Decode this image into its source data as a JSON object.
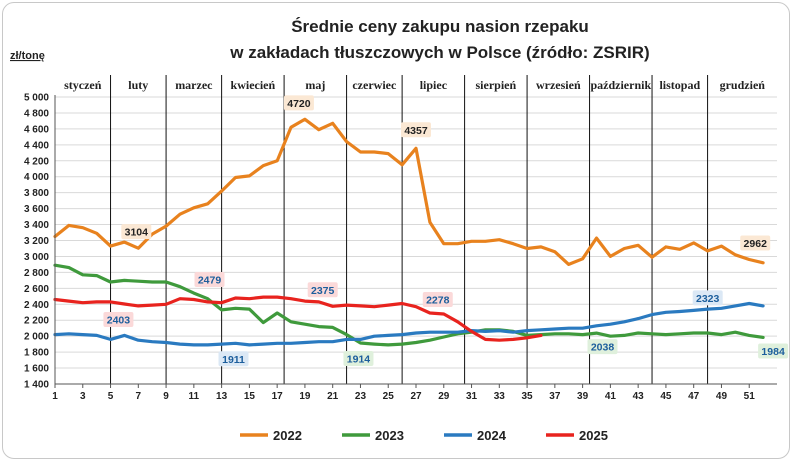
{
  "chart_data": {
    "type": "line",
    "title_line1": "Średnie ceny zakupu nasion rzepaku",
    "title_line2": "w zakładach tłuszczowych w Polsce  (źródło: ZSRIR)",
    "ylabel": "zł/tonę",
    "ylim": [
      1400,
      5000
    ],
    "yticks": [
      "1 400",
      "1 600",
      "1 800",
      "2 000",
      "2 200",
      "2 400",
      "2 600",
      "2 800",
      "3 000",
      "3 200",
      "3 400",
      "3 600",
      "3 800",
      "4 000",
      "4 200",
      "4 400",
      "4 600",
      "4 800",
      "5 000"
    ],
    "xlim": [
      1,
      53
    ],
    "xticks": [
      "1",
      "3",
      "5",
      "7",
      "9",
      "11",
      "13",
      "15",
      "17",
      "19",
      "21",
      "23",
      "25",
      "27",
      "29",
      "31",
      "33",
      "35",
      "37",
      "39",
      "41",
      "43",
      "45",
      "47",
      "49",
      "51"
    ],
    "months": [
      {
        "label": "styczeń",
        "start": 1,
        "end": 5
      },
      {
        "label": "luty",
        "start": 5,
        "end": 9
      },
      {
        "label": "marzec",
        "start": 9,
        "end": 13
      },
      {
        "label": "kwiecień",
        "start": 13,
        "end": 17.5
      },
      {
        "label": "maj",
        "start": 17.5,
        "end": 22
      },
      {
        "label": "czerwiec",
        "start": 22,
        "end": 26
      },
      {
        "label": "lipiec",
        "start": 26,
        "end": 30.5
      },
      {
        "label": "sierpień",
        "start": 30.5,
        "end": 35
      },
      {
        "label": "wrzesień",
        "start": 35,
        "end": 39.5
      },
      {
        "label": "październik",
        "start": 39.5,
        "end": 44
      },
      {
        "label": "listopad",
        "start": 44,
        "end": 48
      },
      {
        "label": "grudzień",
        "start": 48,
        "end": 53
      }
    ],
    "series": [
      {
        "name": "2022",
        "color": "#E8821E",
        "x": [
          1,
          2,
          3,
          4,
          5,
          6,
          7,
          8,
          9,
          10,
          11,
          12,
          13,
          14,
          15,
          16,
          17,
          18,
          19,
          20,
          21,
          22,
          23,
          24,
          25,
          26,
          27,
          28,
          29,
          30,
          31,
          32,
          33,
          34,
          35,
          36,
          37,
          38,
          39,
          40,
          41,
          42,
          43,
          44,
          45,
          46,
          47,
          48,
          49,
          50,
          51,
          52
        ],
        "values": [
          3250,
          3390,
          3360,
          3290,
          3130,
          3180,
          3104,
          3280,
          3380,
          3530,
          3610,
          3660,
          3820,
          3990,
          4010,
          4140,
          4200,
          4620,
          4720,
          4590,
          4670,
          4440,
          4310,
          4310,
          4290,
          4150,
          4357,
          3430,
          3160,
          3160,
          3190,
          3190,
          3210,
          3160,
          3100,
          3120,
          3060,
          2900,
          2970,
          3230,
          3000,
          3100,
          3140,
          2990,
          3120,
          3090,
          3170,
          3070,
          3130,
          3020,
          2962,
          2920
        ]
      },
      {
        "name": "2023",
        "color": "#3F9A3C",
        "x": [
          1,
          2,
          3,
          4,
          5,
          6,
          7,
          8,
          9,
          10,
          11,
          12,
          13,
          14,
          15,
          16,
          17,
          18,
          19,
          20,
          21,
          22,
          23,
          24,
          25,
          26,
          27,
          28,
          29,
          30,
          31,
          32,
          33,
          34,
          35,
          36,
          37,
          38,
          39,
          40,
          41,
          42,
          43,
          44,
          45,
          46,
          47,
          48,
          49,
          50,
          51,
          52
        ],
        "values": [
          2890,
          2860,
          2770,
          2760,
          2680,
          2700,
          2690,
          2680,
          2680,
          2620,
          2540,
          2470,
          2330,
          2350,
          2340,
          2170,
          2290,
          2180,
          2150,
          2120,
          2110,
          2020,
          1914,
          1900,
          1890,
          1900,
          1920,
          1950,
          1990,
          2030,
          2050,
          2080,
          2080,
          2060,
          2010,
          2020,
          2030,
          2030,
          2020,
          2038,
          2000,
          2010,
          2040,
          2030,
          2020,
          2030,
          2040,
          2040,
          2020,
          2050,
          2010,
          1984
        ]
      },
      {
        "name": "2024",
        "color": "#2A7AC0",
        "x": [
          1,
          2,
          3,
          4,
          5,
          6,
          7,
          8,
          9,
          10,
          11,
          12,
          13,
          14,
          15,
          16,
          17,
          18,
          19,
          20,
          21,
          22,
          23,
          24,
          25,
          26,
          27,
          28,
          29,
          30,
          31,
          32,
          33,
          34,
          35,
          36,
          37,
          38,
          39,
          40,
          41,
          42,
          43,
          44,
          45,
          46,
          47,
          48,
          49,
          50,
          51,
          52
        ],
        "values": [
          2020,
          2030,
          2020,
          2010,
          1960,
          2010,
          1950,
          1930,
          1920,
          1900,
          1890,
          1890,
          1900,
          1911,
          1890,
          1900,
          1910,
          1910,
          1920,
          1930,
          1930,
          1960,
          1960,
          2000,
          2010,
          2020,
          2040,
          2050,
          2050,
          2050,
          2070,
          2060,
          2070,
          2050,
          2070,
          2080,
          2090,
          2100,
          2100,
          2130,
          2150,
          2180,
          2220,
          2270,
          2300,
          2310,
          2323,
          2340,
          2350,
          2380,
          2410,
          2380
        ]
      },
      {
        "name": "2025",
        "color": "#E8231E",
        "x": [
          1,
          2,
          3,
          4,
          5,
          6,
          7,
          8,
          9,
          10,
          11,
          12,
          13,
          14,
          15,
          16,
          17,
          18,
          19,
          20,
          21,
          22,
          23,
          24,
          25,
          26,
          27,
          28,
          29,
          30,
          31,
          32,
          33,
          34,
          35,
          36
        ],
        "values": [
          2460,
          2440,
          2420,
          2430,
          2430,
          2403,
          2380,
          2390,
          2400,
          2470,
          2460,
          2430,
          2420,
          2479,
          2470,
          2490,
          2490,
          2470,
          2440,
          2430,
          2375,
          2390,
          2380,
          2370,
          2390,
          2410,
          2370,
          2290,
          2278,
          2180,
          2060,
          1960,
          1950,
          1960,
          1980,
          2010
        ]
      }
    ],
    "annotations": [
      {
        "text": "3104",
        "series": "2022"
      },
      {
        "text": "4720",
        "series": "2022"
      },
      {
        "text": "4357",
        "series": "2022"
      },
      {
        "text": "2962",
        "series": "2022"
      },
      {
        "text": "1914",
        "series": "2023"
      },
      {
        "text": "2038",
        "series": "2023"
      },
      {
        "text": "1984",
        "series": "2023"
      },
      {
        "text": "1911",
        "series": "2024"
      },
      {
        "text": "2323",
        "series": "2024"
      },
      {
        "text": "2403",
        "series": "2025"
      },
      {
        "text": "2479",
        "series": "2025"
      },
      {
        "text": "2375",
        "series": "2025"
      },
      {
        "text": "2278",
        "series": "2025"
      }
    ],
    "grid": true,
    "legend_position": "bottom"
  }
}
